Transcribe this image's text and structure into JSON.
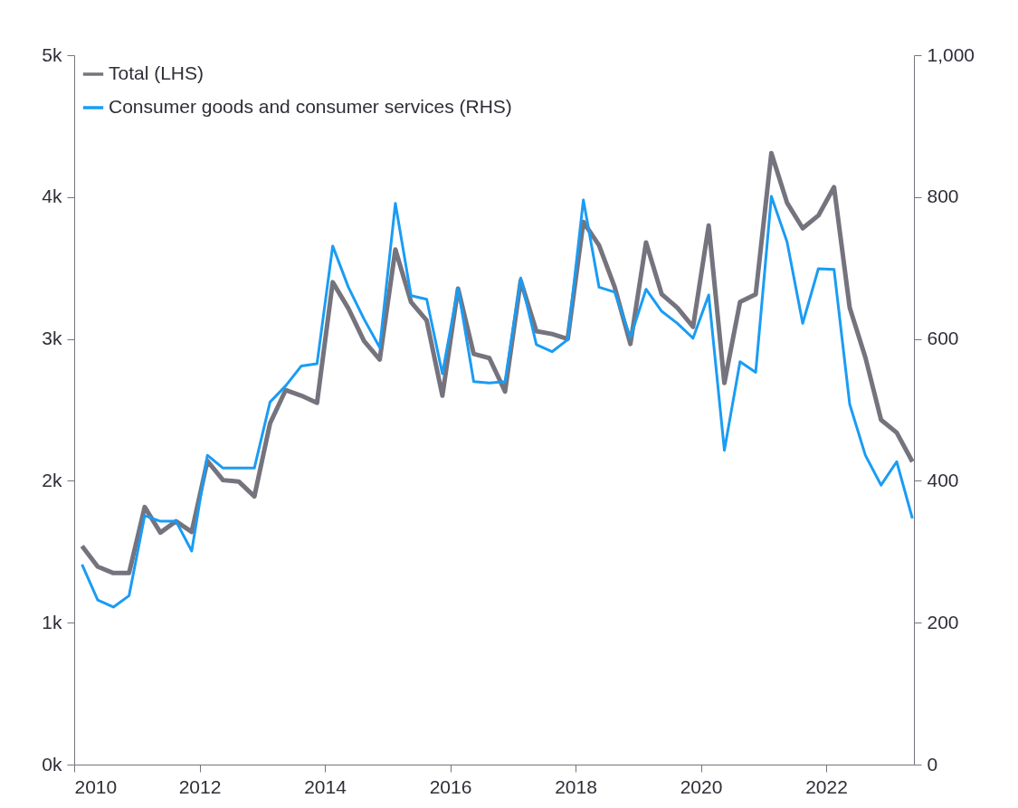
{
  "chart_data": {
    "type": "line",
    "x": [
      2010.125,
      2010.375,
      2010.625,
      2010.875,
      2011.125,
      2011.375,
      2011.625,
      2011.875,
      2012.125,
      2012.375,
      2012.625,
      2012.875,
      2013.125,
      2013.375,
      2013.625,
      2013.875,
      2014.125,
      2014.375,
      2014.625,
      2014.875,
      2015.125,
      2015.375,
      2015.625,
      2015.875,
      2016.125,
      2016.375,
      2016.625,
      2016.875,
      2017.125,
      2017.375,
      2017.625,
      2017.875,
      2018.125,
      2018.375,
      2018.625,
      2018.875,
      2019.125,
      2019.375,
      2019.625,
      2019.875,
      2020.125,
      2020.375,
      2020.625,
      2020.875,
      2021.125,
      2021.375,
      2021.625,
      2021.875,
      2022.125,
      2022.375,
      2022.625,
      2022.875,
      2023.125,
      2023.375
    ],
    "series": [
      {
        "name": "Total (LHS)",
        "color": "#75747e",
        "values": [
          1540,
          1395,
          1350,
          1350,
          1815,
          1635,
          1715,
          1640,
          2140,
          2005,
          1995,
          1890,
          2405,
          2640,
          2600,
          2550,
          3400,
          3215,
          2985,
          2855,
          3630,
          3260,
          3130,
          2600,
          3355,
          2895,
          2865,
          2630,
          3410,
          3055,
          3035,
          3000,
          3825,
          3660,
          3365,
          2965,
          3680,
          3315,
          3220,
          3085,
          3800,
          2690,
          3260,
          3315,
          4310,
          3960,
          3780,
          3870,
          4070,
          3220,
          2870,
          2430,
          2340,
          2135
        ]
      },
      {
        "name": "Consumer goods and consumer services (RHS)",
        "color": "#1a9cf4",
        "axis": "y2",
        "values": [
          282,
          232,
          222,
          238,
          351,
          343,
          343,
          301,
          436,
          418,
          418,
          418,
          511,
          534,
          562,
          565,
          731,
          673,
          628,
          588,
          791,
          661,
          656,
          551,
          672,
          540,
          538,
          540,
          686,
          592,
          582,
          599,
          796,
          673,
          666,
          602,
          670,
          639,
          622,
          601,
          662,
          443,
          568,
          553,
          801,
          737,
          622,
          699,
          698,
          508,
          436,
          394,
          427,
          347
        ]
      }
    ],
    "xlim": [
      2010,
      2023.4
    ],
    "xticks": [
      2010,
      2012,
      2014,
      2016,
      2018,
      2020,
      2022
    ],
    "ylim": [
      0,
      5000
    ],
    "yticks": [
      {
        "value": 0,
        "label": "0k"
      },
      {
        "value": 1000,
        "label": "1k"
      },
      {
        "value": 2000,
        "label": "2k"
      },
      {
        "value": 3000,
        "label": "3k"
      },
      {
        "value": 4000,
        "label": "4k"
      },
      {
        "value": 5000,
        "label": "5k"
      }
    ],
    "y2lim": [
      0,
      1000
    ],
    "y2ticks": [
      0,
      200,
      400,
      600,
      800,
      {
        "value": 1000,
        "label": "1,000"
      }
    ],
    "grid": false,
    "legend": "top left",
    "marker": "none",
    "line_style": "solid"
  }
}
